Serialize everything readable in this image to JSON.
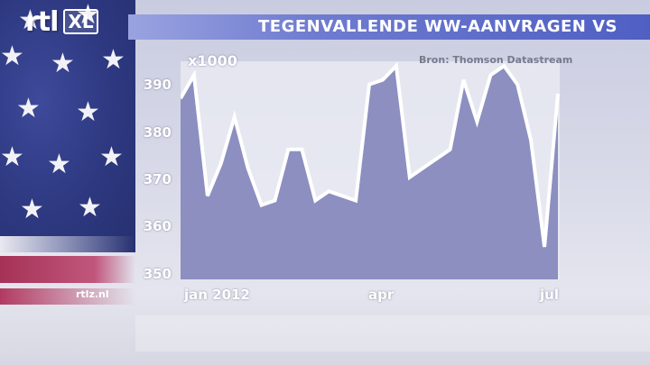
{
  "brand": {
    "logo_text": "rtl",
    "logo_badge": "XL",
    "site": "rtlz.nl"
  },
  "title": "TEGENVALLENDE WW-AANVRAGEN VS",
  "source": "Bron: Thomson Datastream",
  "colors": {
    "title_bar": "#5a69c8",
    "area_fill": "#8c8fc0",
    "line": "#ffffff",
    "panel": "#e6e7f0"
  },
  "chart_data": {
    "type": "area",
    "title": "TEGENVALLENDE WW-AANVRAGEN VS",
    "ylabel": "x1000",
    "ylim": [
      346,
      393
    ],
    "yticks": [
      350,
      360,
      370,
      380,
      390
    ],
    "x_tick_labels": [
      "jan 2012",
      "apr",
      "jul"
    ],
    "grid": false,
    "legend": "none",
    "series": [
      {
        "values": [
          385,
          390,
          364,
          371,
          381,
          370,
          362,
          363,
          374,
          374,
          363,
          365,
          364,
          363,
          388,
          389,
          392,
          368,
          370,
          372,
          374,
          389,
          380,
          390,
          392,
          388,
          376,
          353,
          386
        ]
      }
    ]
  }
}
